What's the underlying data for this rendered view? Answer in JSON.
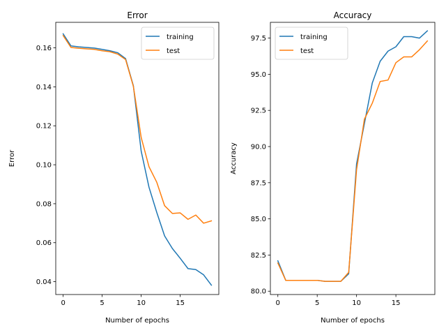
{
  "chart_data": [
    {
      "type": "line",
      "title": "Error",
      "xlabel": "Number of epochs",
      "ylabel": "Error",
      "x": [
        0,
        1,
        2,
        3,
        4,
        5,
        6,
        7,
        8,
        9,
        10,
        11,
        12,
        13,
        14,
        15,
        16,
        17,
        18,
        19
      ],
      "xlim": [
        -0.95,
        19.95
      ],
      "ylim": [
        0.0334,
        0.1731
      ],
      "xticks": [
        0,
        5,
        10,
        15
      ],
      "yticks": [
        0.04,
        0.06,
        0.08,
        0.1,
        0.12,
        0.14,
        0.16
      ],
      "xtick_labels": [
        "0",
        "5",
        "10",
        "15"
      ],
      "ytick_labels": [
        "0.04",
        "0.06",
        "0.08",
        "0.10",
        "0.12",
        "0.14",
        "0.16"
      ],
      "grid": false,
      "legend": "top-right",
      "series": [
        {
          "name": "training",
          "color": "#1f77b4",
          "values": [
            0.1672,
            0.161,
            0.1605,
            0.1602,
            0.1599,
            0.1592,
            0.1585,
            0.1575,
            0.1545,
            0.1405,
            0.107,
            0.0885,
            0.0755,
            0.0635,
            0.057,
            0.052,
            0.0467,
            0.0462,
            0.0435,
            0.0382
          ]
        },
        {
          "name": "test",
          "color": "#ff7f0e",
          "values": [
            0.1663,
            0.1602,
            0.1598,
            0.1595,
            0.1592,
            0.1585,
            0.158,
            0.1568,
            0.154,
            0.1402,
            0.114,
            0.099,
            0.091,
            0.079,
            0.075,
            0.0753,
            0.072,
            0.0742,
            0.07,
            0.0712
          ]
        }
      ]
    },
    {
      "type": "line",
      "title": "Accuracy",
      "xlabel": "Number of epochs",
      "ylabel": "Accuracy",
      "x": [
        0,
        1,
        2,
        3,
        4,
        5,
        6,
        7,
        8,
        9,
        10,
        11,
        12,
        13,
        14,
        15,
        16,
        17,
        18,
        19
      ],
      "xlim": [
        -0.95,
        19.95
      ],
      "ylim": [
        79.77,
        98.59
      ],
      "xticks": [
        0,
        5,
        10,
        15
      ],
      "yticks": [
        80.0,
        82.5,
        85.0,
        87.5,
        90.0,
        92.5,
        95.0,
        97.5
      ],
      "xtick_labels": [
        "0",
        "5",
        "10",
        "15"
      ],
      "ytick_labels": [
        "80.0",
        "82.5",
        "85.0",
        "87.5",
        "90.0",
        "92.5",
        "95.0",
        "97.5"
      ],
      "grid": false,
      "legend": "top-left",
      "series": [
        {
          "name": "training",
          "color": "#1f77b4",
          "values": [
            82.1,
            80.75,
            80.75,
            80.75,
            80.75,
            80.75,
            80.68,
            80.68,
            80.68,
            81.2,
            88.8,
            91.6,
            94.4,
            95.9,
            96.6,
            96.9,
            97.6,
            97.6,
            97.5,
            98.0
          ]
        },
        {
          "name": "test",
          "color": "#ff7f0e",
          "values": [
            81.95,
            80.75,
            80.75,
            80.75,
            80.75,
            80.75,
            80.68,
            80.68,
            80.68,
            81.3,
            88.4,
            91.9,
            93.0,
            94.5,
            94.6,
            95.8,
            96.2,
            96.2,
            96.7,
            97.3
          ]
        }
      ]
    }
  ]
}
